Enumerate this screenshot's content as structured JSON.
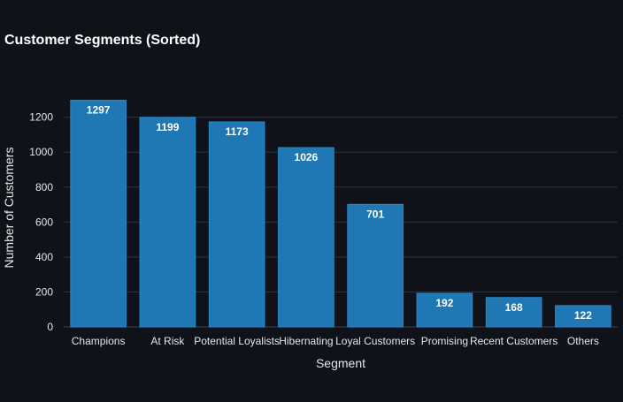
{
  "chart_data": {
    "type": "bar",
    "title": "Customer Segments (Sorted)",
    "xlabel": "Segment",
    "ylabel": "Number of Customers",
    "categories": [
      "Champions",
      "At Risk",
      "Potential Loyalists",
      "Hibernating",
      "Loyal Customers",
      "Promising",
      "Recent Customers",
      "Others"
    ],
    "values": [
      1297,
      1199,
      1173,
      1026,
      701,
      192,
      168,
      122
    ],
    "ylim": [
      0,
      1365
    ],
    "yticks": [
      0,
      200,
      400,
      600,
      800,
      1000,
      1200
    ],
    "grid": true,
    "legend": "none",
    "colors": {
      "background": "#0f1219",
      "bar": "#1f77b4",
      "bar_edge": "#2a8ad0",
      "grid": "#2c3140",
      "text": "#e6e6e6",
      "title": "#ffffff"
    }
  }
}
